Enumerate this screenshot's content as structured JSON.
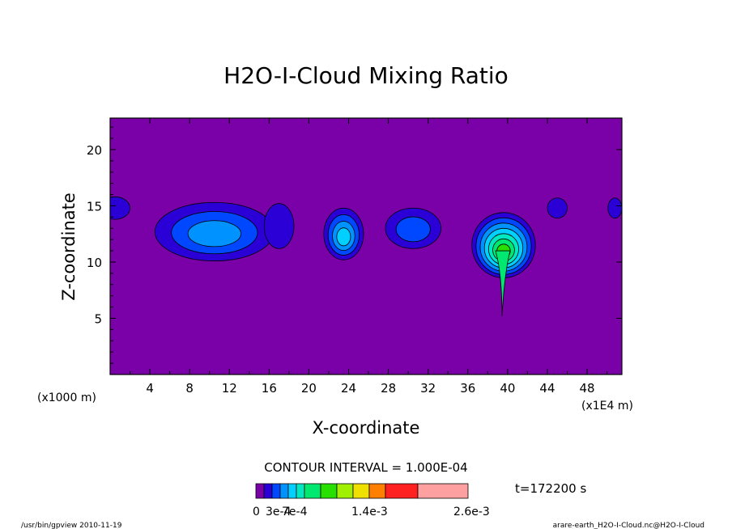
{
  "chart_data": {
    "type": "heatmap",
    "title": "H2O-I-Cloud Mixing Ratio",
    "xlabel": "X-coordinate",
    "ylabel": "Z-coordinate",
    "x_unit_left": "(x1000 m)",
    "x_unit_right": "(x1E4 m)",
    "xlim": [
      0,
      51.5
    ],
    "ylim": [
      0,
      22.8
    ],
    "x_ticks": [
      4,
      8,
      12,
      16,
      20,
      24,
      28,
      32,
      36,
      40,
      44,
      48
    ],
    "x_tick_labels": [
      "4",
      "8",
      "12",
      "16",
      "20",
      "24",
      "28",
      "32",
      "36",
      "40",
      "44",
      "48"
    ],
    "y_ticks": [
      5,
      10,
      15,
      20
    ],
    "y_tick_labels": [
      "5",
      "10",
      "15",
      "20"
    ],
    "background_color": "#7a00a8",
    "contour_interval_label": "CONTOUR INTERVAL = 1.000E-04",
    "time_label": "t=172200 s",
    "colorbar": {
      "colors": [
        "#7a00a8",
        "#2a00d6",
        "#0048ff",
        "#0092ff",
        "#00d0ff",
        "#00e8c0",
        "#00e870",
        "#28e000",
        "#a0f000",
        "#f0e000",
        "#ff8000",
        "#ff2020",
        "#ffa0a0"
      ],
      "tick_labels": [
        "0",
        "3e-4",
        "7e-4",
        "1.4e-3",
        "2.6e-3"
      ]
    },
    "cloud_cells": [
      {
        "x_center": 0.5,
        "z_center": 14.8,
        "x_half_width": 1.5,
        "z_half_height": 1.0,
        "levels": 1
      },
      {
        "x_center": 10.5,
        "z_center": 12.7,
        "x_half_width": 6.0,
        "z_half_height": 2.6,
        "levels": 3
      },
      {
        "x_center": 17.0,
        "z_center": 13.2,
        "x_half_width": 1.5,
        "z_half_height": 2.0,
        "levels": 1
      },
      {
        "x_center": 23.5,
        "z_center": 12.5,
        "x_half_width": 2.0,
        "z_half_height": 2.3,
        "levels": 4
      },
      {
        "x_center": 30.5,
        "z_center": 13.0,
        "x_half_width": 2.8,
        "z_half_height": 1.8,
        "levels": 2
      },
      {
        "x_center": 39.6,
        "z_center": 11.5,
        "x_half_width": 3.2,
        "z_half_height": 2.9,
        "levels": 7
      },
      {
        "x_center": 45.0,
        "z_center": 14.8,
        "x_half_width": 1.0,
        "z_half_height": 0.9,
        "levels": 1
      },
      {
        "x_center": 50.8,
        "z_center": 14.8,
        "x_half_width": 0.7,
        "z_half_height": 0.9,
        "levels": 1
      }
    ]
  },
  "footer": {
    "left": "/usr/bin/gpview   2010-11-19",
    "right": "arare-earth_H2O-I-Cloud.nc@H2O-I-Cloud"
  }
}
